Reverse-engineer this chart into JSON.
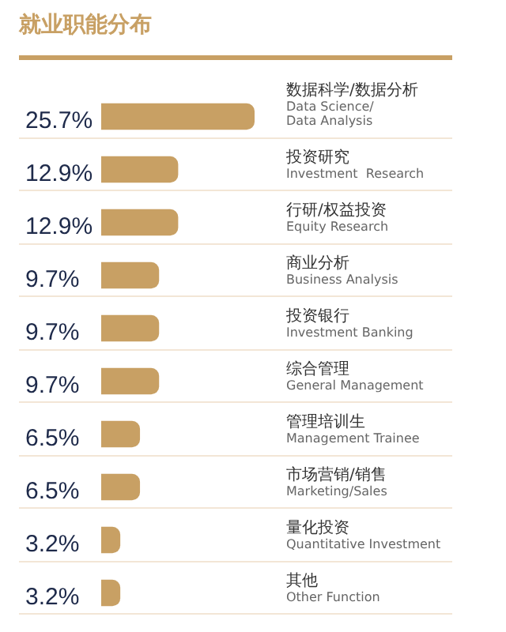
{
  "chart_data": {
    "type": "bar",
    "orientation": "horizontal",
    "title": "就业职能分布",
    "categories": [
      "数据科学/数据分析\nData Science/\nData Analysis",
      "投资研究\nInvestment  Research",
      "行研/权益投资\nEquity Research",
      "商业分析\nBusiness Analysis",
      "投资银行\nInvestment Banking",
      "综合管理\nGeneral Management",
      "管理培训生\nManagement Trainee",
      "市场营销/销售\nMarketing/Sales",
      "量化投资\nQuantitative Investment",
      "其他\nOther Function"
    ],
    "values": [
      25.7,
      12.9,
      12.9,
      9.7,
      9.7,
      9.7,
      6.5,
      6.5,
      3.2,
      3.2
    ],
    "value_labels": [
      "25.7%",
      "12.9%",
      "12.9%",
      "9.7%",
      "9.7%",
      "9.7%",
      "6.5%",
      "6.5%",
      "3.2%",
      "3.2%"
    ],
    "color": "#c8a064"
  }
}
